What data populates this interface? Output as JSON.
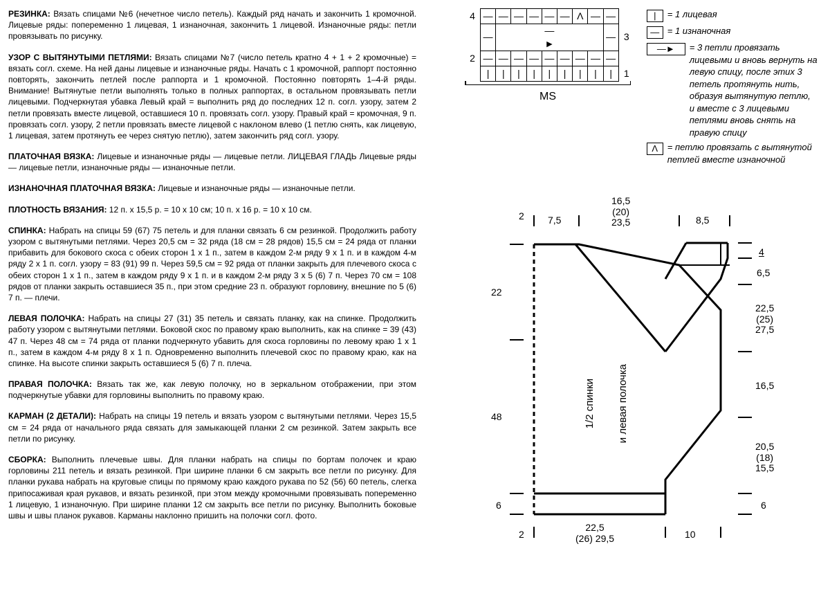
{
  "text": {
    "p1_label": "РЕЗИНКА:",
    "p1": " Вязать спицами №6 (нечетное число петель). Каждый ряд начать и закончить 1 кромочной. Лицевые ряды: попеременно 1 лицевая, 1 изнаночная, закончить 1 лицевой. Изнаночные ряды: петли провязывать по рисунку.",
    "p2_label": "УЗОР С ВЫТЯНУТЫМИ ПЕТЛЯМИ:",
    "p2": " Вязать спицами №7 (число петель кратно 4 + 1 + 2 кромочные) = вязать согл. схеме. На ней даны лицевые и изнаночные ряды. Начать с 1 кромочной, раппорт постоянно повторять, закончить петлей после раппорта и 1 кромочной. Постоянно повторять 1–4-й ряды. Внимание! Вытянутые петли выполнять только в полных раппортах, в остальном провязывать петли лицевыми. Подчеркнутая убавка Левый край = выполнить ряд до последних 12 п. согл. узору, затем 2 петли провязать вместе лицевой, оставшиеся 10 п. провязать согл. узору. Правый край = кромочная, 9 п. провязать согл. узору, 2 петли провязать вместе лицевой с наклоном влево (1 петлю снять, как лицевую, 1 лицевая, затем протянуть ее через снятую петлю), затем закончить ряд согл. узору.",
    "p3_label": "ПЛАТОЧНАЯ ВЯЗКА:",
    "p3": " Лицевые и изнаночные ряды — лицевые петли. ЛИЦЕВАЯ ГЛАДЬ Лицевые ряды — лицевые петли, изнаночные ряды — изнаночные петли.",
    "p4_label": "ИЗНАНОЧНАЯ ПЛАТОЧНАЯ ВЯЗКА:",
    "p4": " Лицевые и изнаночные ряды — изнаночные петли.",
    "p5_label": "ПЛОТНОСТЬ ВЯЗАНИЯ:",
    "p5": " 12 п. х 15,5 р. = 10 х 10 см; 10 п. х 16 р. = 10 х 10 см.",
    "p6_label": "СПИНКА:",
    "p6": " Набрать на спицы 59 (67) 75 петель и для планки связать 6 см резинкой. Продолжить работу узором с вытянутыми петлями. Через 20,5 см = 32 ряда (18 см = 28 рядов) 15,5 см = 24 ряда от планки прибавить для бокового скоса с обеих сторон 1 х 1 п., затем в каждом 2-м ряду 9 х 1 п. и в каждом 4-м ряду 2 х 1 п. согл. узору = 83 (91) 99 п. Через 59,5 см = 92 ряда от планки закрыть для плечевого скоса с обеих сторон 1 х 1 п., затем в каждом ряду 9 х 1 п. и в каждом 2-м ряду 3 х 5 (6) 7 п. Через 70 см = 108 рядов от планки закрыть оставшиеся 35 п., при этом средние 23 п. образуют горловину, внешние по 5 (6) 7 п. — плечи.",
    "p7_label": "ЛЕВАЯ ПОЛОЧКА:",
    "p7": " Набрать на спицы 27 (31) 35 петель и связать планку, как на спинке. Продолжить работу узором с вытянутыми петлями. Боковой скос по правому краю выполнить, как на спинке = 39 (43) 47 п. Через 48 см = 74 ряда от планки подчеркнуто убавить для скоса горловины по левому краю 1 х 1 п., затем в каждом 4-м ряду 8 х 1 п. Одновременно выполнить плечевой скос по правому краю, как на спинке. На высоте спинки закрыть оставшиеся 5 (6) 7 п. плеча.",
    "p8_label": "ПРАВАЯ ПОЛОЧКА:",
    "p8": " Вязать так же, как левую полочку, но в зеркальном отображении, при этом подчеркнутые убавки для горловины выполнить по правому краю.",
    "p9_label": "КАРМАН (2 ДЕТАЛИ):",
    "p9": " Набрать на спицы 19 петель и вязать узором с вытянутыми петлями. Через 15,5 см = 24 ряда от начального ряда связать для замыкающей планки 2 см резинкой. Затем закрыть все петли по рисунку.",
    "p10_label": "СБОРКА:",
    "p10": " Выполнить плечевые швы. Для планки набрать на спицы по бортам полочек и краю горловины 211 петель и вязать резинкой. При ширине планки 6 см закрыть все петли по рисунку. Для планки рукава набрать на круговые спицы по прямому краю каждого рукава по 52 (56) 60 петель, слегка припосаживая края рукавов, и вязать резинкой, при этом между кромочными провязывать попеременно 1 лицевую, 1 изнаночную. При ширине планки 12 см закрыть все петли по рисунку. Выполнить боковые швы и швы планок рукавов. Карманы наклонно пришить на полочки согл. фото."
  },
  "chart": {
    "rows": [
      [
        "4",
        "—",
        "—",
        "—",
        "—",
        "—",
        "—",
        "Λ",
        "—",
        "—",
        ""
      ],
      [
        "",
        "—",
        "",
        "",
        "",
        "",
        "",
        "",
        "",
        "—",
        "3"
      ],
      [
        "2",
        "—",
        "—",
        "—",
        "—",
        "—",
        "—",
        "—",
        "—",
        "—",
        ""
      ],
      [
        "",
        "|",
        "|",
        "|",
        "|",
        "|",
        "|",
        "|",
        "|",
        "|",
        "1"
      ]
    ],
    "ms": "MS"
  },
  "legend": {
    "l1": "= 1 лицевая",
    "l2": "= 1 изнаночная",
    "l3": "= 3 петли провязать лицевыми и вновь вернуть на левую спицу, после этих 3 петель протянуть нить, образуя вытянутую петлю, и вместе с 3 лицевыми петлями вновь снять на правую спицу",
    "l4": "= петлю провязать с вытянутой петлей вместе изнаночной"
  },
  "schematic": {
    "top_left_2": "2",
    "top_7_5": "7,5",
    "top_stack": "16,5\n(20)\n23,5",
    "top_8_5": "8,5",
    "top_right_bar": "│",
    "left_22": "22",
    "left_48": "48",
    "left_6": "6",
    "bot_left_2": "2",
    "bot_stack": "22,5\n(26) 29,5",
    "bot_10": "10",
    "right_4": "4",
    "right_6_5": "6,5",
    "right_stack1": "22,5\n(25)\n27,5",
    "right_16_5": "16,5",
    "right_stack2": "20,5\n(18)\n15,5",
    "right_6": "6",
    "vert1": "1/2 спинки",
    "vert2": "и левая полочка",
    "colors": {
      "line": "#000000",
      "bg": "#ffffff"
    }
  }
}
